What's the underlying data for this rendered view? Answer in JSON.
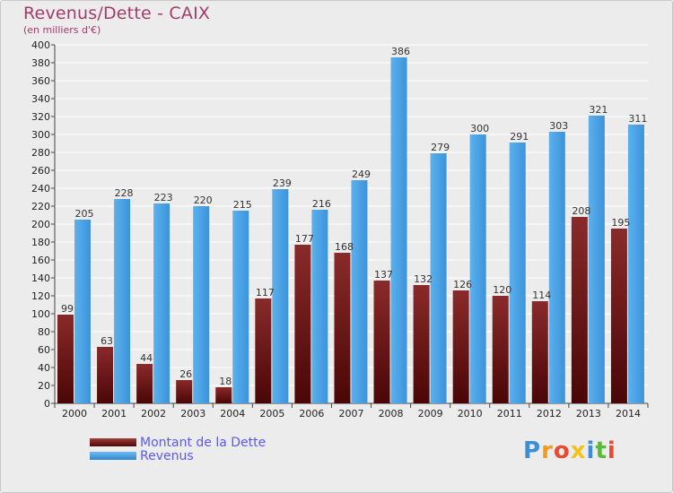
{
  "chart_data": {
    "type": "bar",
    "title": "Revenus/Dette - CAIX",
    "subtitle": "(en milliers d'€)",
    "categories": [
      "2000",
      "2001",
      "2002",
      "2003",
      "2004",
      "2005",
      "2006",
      "2007",
      "2008",
      "2009",
      "2010",
      "2011",
      "2012",
      "2013",
      "2014"
    ],
    "series": [
      {
        "name": "Montant de la Dette",
        "color": "#7a1e1e",
        "values": [
          99,
          63,
          44,
          26,
          18,
          117,
          177,
          168,
          137,
          132,
          126,
          120,
          114,
          208,
          195
        ]
      },
      {
        "name": "Revenus",
        "color": "#4aa3e6",
        "values": [
          205,
          228,
          223,
          220,
          215,
          239,
          216,
          249,
          386,
          279,
          300,
          291,
          303,
          321,
          311
        ]
      }
    ],
    "ylim": [
      0,
      400
    ],
    "ytick_step": 20,
    "grid": true,
    "legend_position": "bottom-left"
  },
  "logo": {
    "letters": [
      "P",
      "r",
      "o",
      "x",
      "i",
      "t",
      "i"
    ],
    "colors": [
      "#3a8fd8",
      "#f29b1d",
      "#e84b2e",
      "#f2c21d",
      "#3a8fd8",
      "#5cb83a",
      "#e84b2e"
    ]
  }
}
